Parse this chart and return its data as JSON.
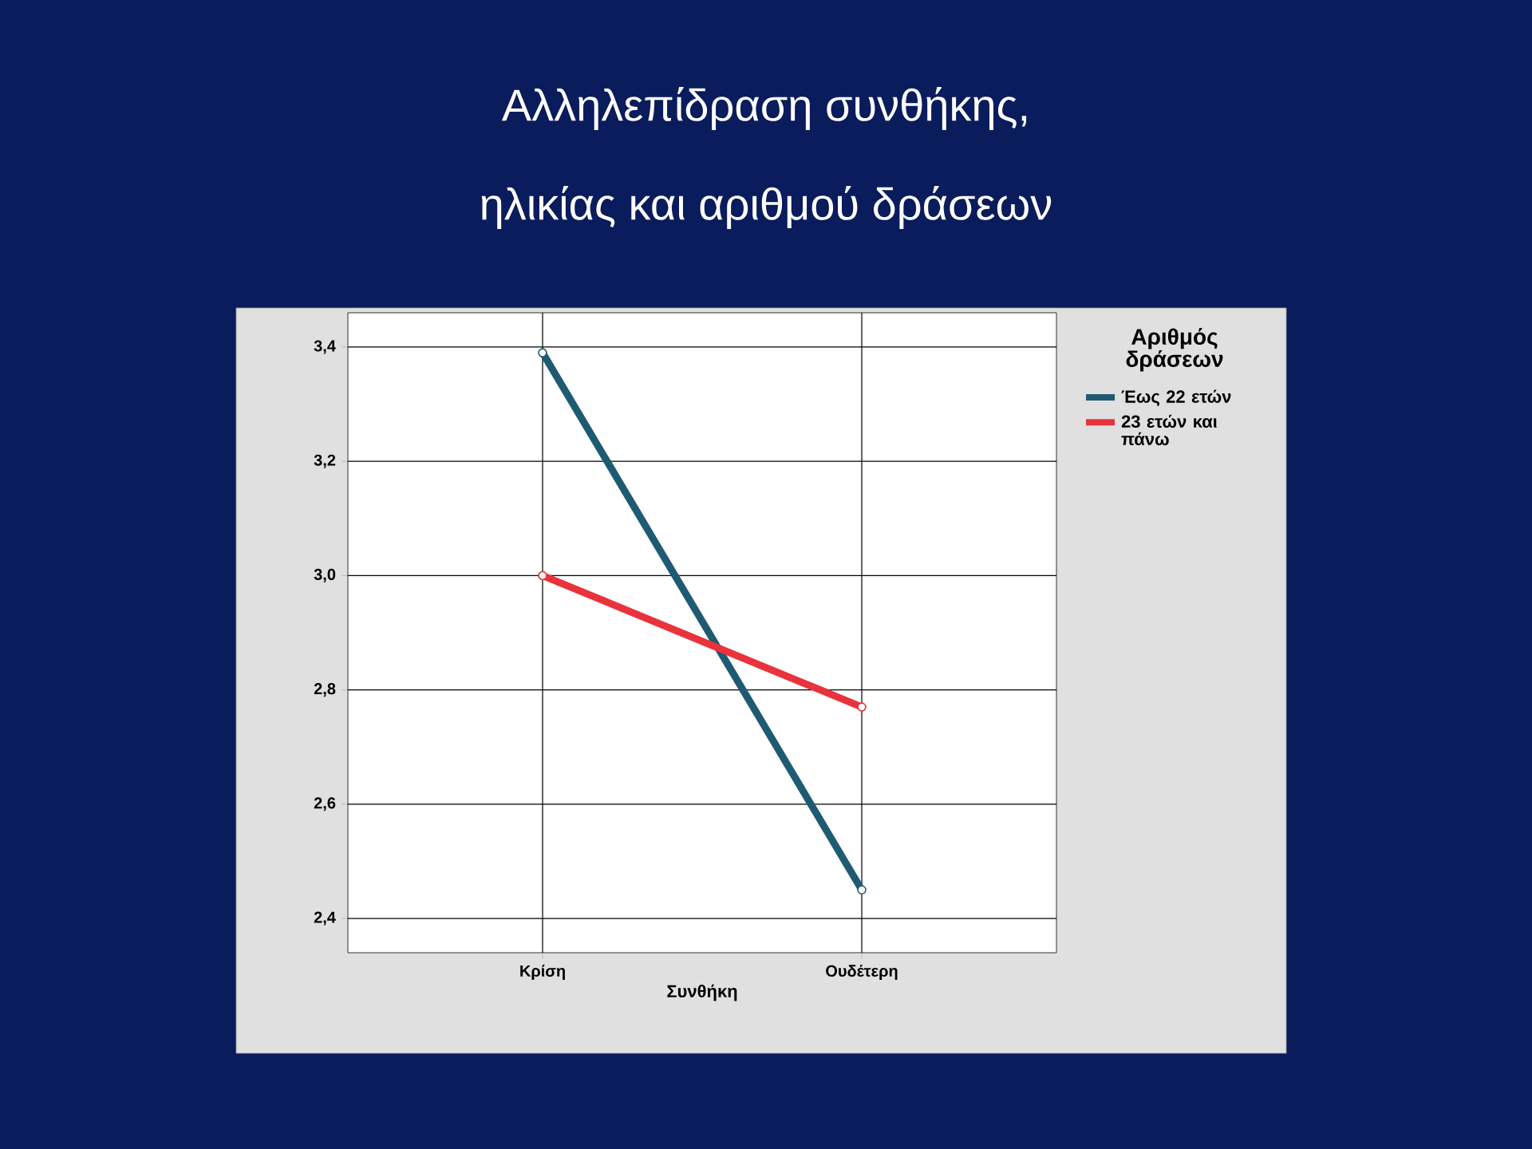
{
  "chart_data": {
    "type": "line",
    "title": "Αλληλεπίδραση συνθήκης,",
    "subtitle": "ηλικίας και αριθμού δράσεων",
    "xlabel": "Συνθήκη",
    "legend_title": "Αριθμός δράσεων",
    "categories": [
      "Κρίση",
      "Ουδέτερη"
    ],
    "series": [
      {
        "name": "Έως 22 ετών",
        "color": "#1f5a73",
        "values": [
          3.39,
          2.45
        ]
      },
      {
        "name": "23 ετών και πάνω",
        "color": "#e8333c",
        "values": [
          3.0,
          2.77
        ]
      }
    ],
    "ylim": [
      2.34,
      3.46
    ],
    "yticks": [
      {
        "value": 2.4,
        "label": "2,4"
      },
      {
        "value": 2.6,
        "label": "2,6"
      },
      {
        "value": 2.8,
        "label": "2,8"
      },
      {
        "value": 3.0,
        "label": "3,0"
      },
      {
        "value": 3.2,
        "label": "3,2"
      },
      {
        "value": 3.4,
        "label": "3,4"
      }
    ],
    "grid": true,
    "legend": "top right",
    "marker": "circle",
    "line_style": "solid"
  }
}
